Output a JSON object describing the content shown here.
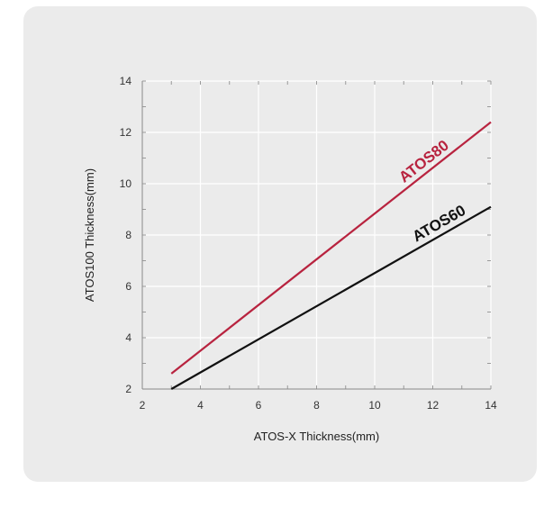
{
  "chart_data": {
    "type": "line",
    "title": "",
    "xlabel": "ATOS-X Thickness(mm)",
    "ylabel": "ATOS100 Thickness(mm)",
    "xlim": [
      2,
      14
    ],
    "ylim": [
      2,
      14
    ],
    "x_ticks": [
      "2",
      "4",
      "6",
      "8",
      "10",
      "12",
      "14"
    ],
    "y_ticks": [
      "2",
      "4",
      "6",
      "8",
      "10",
      "12",
      "14"
    ],
    "grid": true,
    "series": [
      {
        "name": "ATOS80",
        "color": "#b8233f",
        "x": [
          3,
          14
        ],
        "y": [
          2.6,
          12.4
        ]
      },
      {
        "name": "ATOS60",
        "color": "#111111",
        "x": [
          3,
          14
        ],
        "y": [
          2.0,
          9.1
        ]
      }
    ]
  }
}
